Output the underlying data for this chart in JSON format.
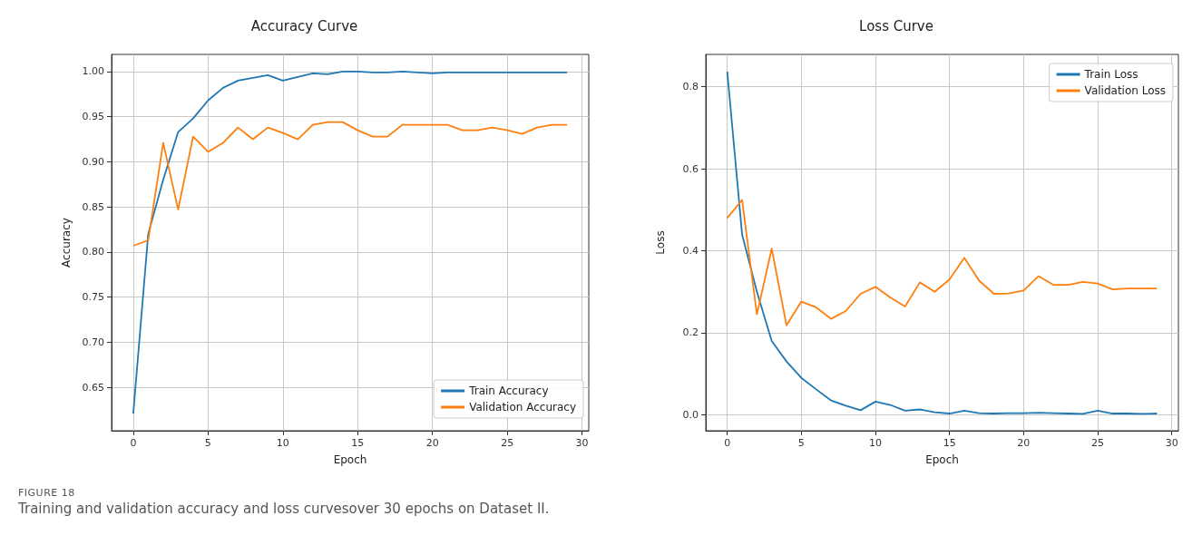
{
  "chart_data": [
    {
      "type": "line",
      "title": "Accuracy Curve",
      "xlabel": "Epoch",
      "ylabel": "Accuracy",
      "x": [
        0,
        1,
        2,
        3,
        4,
        5,
        6,
        7,
        8,
        9,
        10,
        11,
        12,
        13,
        14,
        15,
        16,
        17,
        18,
        19,
        20,
        21,
        22,
        23,
        24,
        25,
        26,
        27,
        28,
        29
      ],
      "series": [
        {
          "name": "Train Accuracy",
          "color": "#1f77b4",
          "values": [
            0.621,
            0.82,
            0.88,
            0.933,
            0.948,
            0.968,
            0.982,
            0.99,
            0.993,
            0.996,
            0.99,
            0.994,
            0.998,
            0.997,
            1.0,
            1.0,
            0.999,
            0.999,
            1.0,
            0.999,
            0.998,
            0.999,
            0.999,
            0.999,
            0.999,
            0.999,
            0.999,
            0.999,
            0.999,
            0.999
          ]
        },
        {
          "name": "Validation Accuracy",
          "color": "#ff7f0e",
          "values": [
            0.807,
            0.813,
            0.921,
            0.847,
            0.928,
            0.911,
            0.921,
            0.938,
            0.925,
            0.938,
            0.932,
            0.925,
            0.941,
            0.944,
            0.944,
            0.935,
            0.928,
            0.928,
            0.941,
            0.941,
            0.941,
            0.941,
            0.935,
            0.935,
            0.938,
            0.935,
            0.931,
            0.938,
            0.941,
            0.941
          ]
        }
      ],
      "xlim": [
        -1.45,
        30.45
      ],
      "xticks": [
        0,
        5,
        10,
        15,
        20,
        25,
        30
      ],
      "ylim": [
        0.602,
        1.019
      ],
      "yticks": [
        0.65,
        {
          "value": 0.7,
          "label": "0.70"
        },
        0.75,
        {
          "value": 0.8,
          "label": "0.80"
        },
        0.85,
        {
          "value": 0.9,
          "label": "0.90"
        },
        0.95,
        {
          "value": 1,
          "label": "1.00"
        }
      ],
      "grid": true,
      "legend": "bottom right",
      "marker": "none",
      "line_style": "solid",
      "annotations": [
        "FIGURE 18",
        "Training and validation accuracy and loss curvesover 30 epochs on Dataset II."
      ]
    },
    {
      "type": "line",
      "title": "Loss Curve",
      "xlabel": "Epoch",
      "ylabel": "Loss",
      "x": [
        0,
        1,
        2,
        3,
        4,
        5,
        6,
        7,
        8,
        9,
        10,
        11,
        12,
        13,
        14,
        15,
        16,
        17,
        18,
        19,
        20,
        21,
        22,
        23,
        24,
        25,
        26,
        27,
        28,
        29
      ],
      "series": [
        {
          "name": "Train Loss",
          "color": "#1f77b4",
          "values": [
            0.837,
            0.44,
            0.3,
            0.18,
            0.13,
            0.09,
            0.062,
            0.035,
            0.022,
            0.011,
            0.032,
            0.024,
            0.01,
            0.013,
            0.006,
            0.003,
            0.01,
            0.004,
            0.003,
            0.004,
            0.004,
            0.005,
            0.004,
            0.003,
            0.002,
            0.01,
            0.003,
            0.003,
            0.002,
            0.003
          ]
        },
        {
          "name": "Validation Loss",
          "color": "#ff7f0e",
          "values": [
            0.48,
            0.524,
            0.245,
            0.405,
            0.218,
            0.276,
            0.262,
            0.234,
            0.253,
            0.295,
            0.312,
            0.286,
            0.264,
            0.323,
            0.3,
            0.33,
            0.383,
            0.327,
            0.295,
            0.296,
            0.303,
            0.338,
            0.317,
            0.317,
            0.324,
            0.32,
            0.306,
            0.308,
            0.308,
            0.308
          ]
        }
      ],
      "xlim": [
        -1.45,
        30.45
      ],
      "xticks": [
        0,
        5,
        10,
        15,
        20,
        25,
        30
      ],
      "ylim": [
        -0.039,
        0.879
      ],
      "yticks": [
        {
          "value": 0,
          "label": "0.0"
        },
        0.2,
        0.4,
        0.6,
        0.8
      ],
      "grid": true,
      "legend": "top right",
      "marker": "none",
      "line_style": "solid"
    }
  ]
}
